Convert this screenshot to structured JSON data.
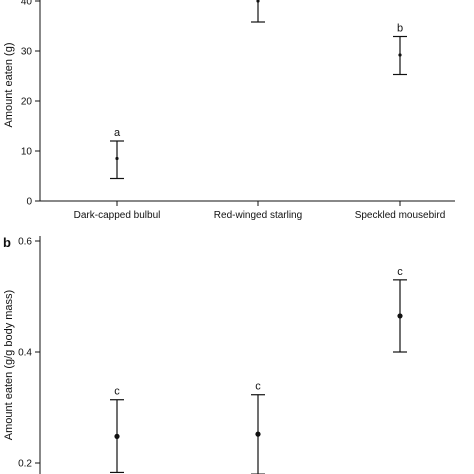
{
  "chart_data": [
    {
      "panel": "a",
      "type": "scatter",
      "categories": [
        "Dark-capped bulbul",
        "Red-winged starling",
        "Speckled mousebird"
      ],
      "values": [
        8.5,
        40,
        29.2
      ],
      "error_lower": [
        4.5,
        35.8,
        25.3
      ],
      "error_upper": [
        12.0,
        44.0,
        32.9
      ],
      "group_labels": [
        "a",
        "",
        "b"
      ],
      "ylabel": "Amount eaten (g)",
      "ylim": [
        0,
        45
      ],
      "yticks": [
        0,
        10,
        20,
        30,
        40
      ],
      "grid": false
    },
    {
      "panel": "b",
      "type": "scatter",
      "categories": [
        "",
        "",
        ""
      ],
      "values": [
        0.248,
        0.252,
        0.465
      ],
      "error_lower": [
        0.183,
        0.18,
        0.4
      ],
      "error_upper": [
        0.314,
        0.323,
        0.53
      ],
      "group_labels": [
        "c",
        "c",
        "c"
      ],
      "ylabel": "Amount eaten (g/g body mass)",
      "ylim": [
        0.0,
        0.6
      ],
      "yticks": [
        0.2,
        0.4,
        0.6
      ],
      "grid": false
    }
  ]
}
